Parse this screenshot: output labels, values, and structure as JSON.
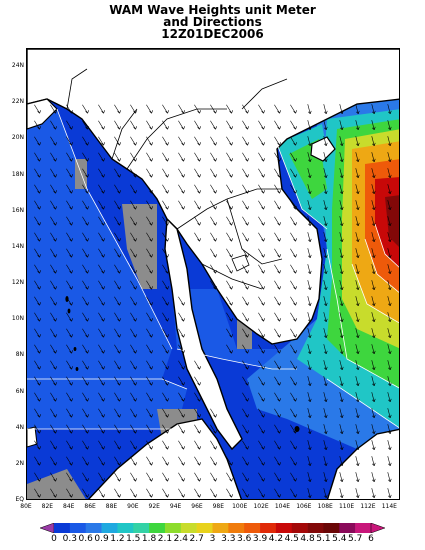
{
  "title": {
    "line1": "WAM Wave Heights unit Meter",
    "line2": "and Directions",
    "line3": "12Z01DEC2006"
  },
  "axes": {
    "x_ticks": [
      "80E",
      "82E",
      "84E",
      "86E",
      "88E",
      "90E",
      "92E",
      "94E",
      "96E",
      "98E",
      "100E",
      "102E",
      "104E",
      "106E",
      "108E",
      "110E",
      "112E",
      "114E"
    ],
    "y_ticks": [
      "EQ",
      "2N",
      "4N",
      "6N",
      "8N",
      "10N",
      "12N",
      "14N",
      "16N",
      "18N",
      "20N",
      "22N",
      "24N"
    ],
    "lon_range": [
      80,
      115
    ],
    "lat_range": [
      0,
      25
    ]
  },
  "colorbar": {
    "labels": [
      "0",
      "0.3",
      "0.6",
      "0.9",
      "1.2",
      "1.5",
      "1.8",
      "2.1",
      "2.4",
      "2.7",
      "3",
      "3.3",
      "3.6",
      "3.9",
      "4.2",
      "4.5",
      "4.8",
      "5.1",
      "5.4",
      "5.7",
      "6"
    ],
    "colors": [
      "#0a3ad6",
      "#1a59e6",
      "#2a79e8",
      "#1fa9e0",
      "#20c6c6",
      "#33d2a6",
      "#3ed63e",
      "#8ddc2c",
      "#c8dc2c",
      "#e8d21c",
      "#eea814",
      "#f07c0c",
      "#ee5a0a",
      "#e02a08",
      "#c80808",
      "#a40808",
      "#820808",
      "#6a0606",
      "#8a0a5a",
      "#c8167a"
    ],
    "under_color": "#9a3aa6",
    "over_color": "#c8167a"
  },
  "land_color": "#ffffff",
  "missing_color": "#8c8c8c"
}
